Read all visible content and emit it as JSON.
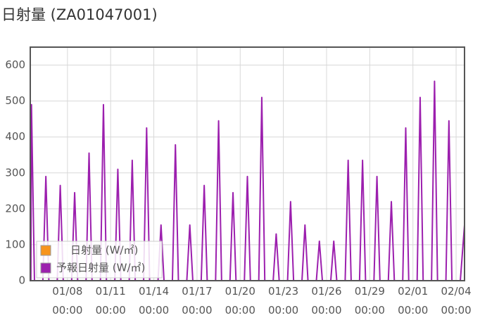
{
  "chart_data": {
    "type": "line",
    "title": "日射量 (ZA01047001)",
    "x": [
      "01/05 11:00",
      "01/05 12:00",
      "01/05 17:00",
      "01/06 07:00",
      "01/06 12:00",
      "01/06 17:00",
      "01/07 07:00",
      "01/07 12:00",
      "01/07 17:00",
      "01/08 07:00",
      "01/08 12:00",
      "01/08 17:00",
      "01/09 07:00",
      "01/09 12:00",
      "01/09 17:00",
      "01/10 07:00",
      "01/10 12:00",
      "01/10 17:00",
      "01/11 07:00",
      "01/11 12:00",
      "01/11 17:00",
      "01/12 07:00",
      "01/12 12:00",
      "01/12 17:00",
      "01/13 07:00",
      "01/13 12:00",
      "01/13 17:00",
      "01/14 07:00",
      "01/14 12:00",
      "01/14 17:00",
      "01/15 07:00",
      "01/15 12:00",
      "01/15 17:00",
      "01/16 07:00",
      "01/16 12:00",
      "01/16 17:00",
      "01/17 07:00",
      "01/17 12:00",
      "01/17 17:00",
      "01/18 07:00",
      "01/18 12:00",
      "01/18 17:00",
      "01/19 07:00",
      "01/19 12:00",
      "01/19 17:00",
      "01/20 07:00",
      "01/20 12:00",
      "01/20 17:00",
      "01/21 07:00",
      "01/21 12:00",
      "01/21 17:00",
      "01/22 07:00",
      "01/22 12:00",
      "01/22 17:00",
      "01/23 07:00",
      "01/23 12:00",
      "01/23 17:00",
      "01/24 07:00",
      "01/24 12:00",
      "01/24 17:00",
      "01/25 07:00",
      "01/25 12:00",
      "01/25 17:00",
      "01/26 07:00",
      "01/26 12:00",
      "01/26 17:00",
      "01/27 07:00",
      "01/27 12:00",
      "01/27 17:00",
      "01/28 07:00",
      "01/28 12:00",
      "01/28 17:00",
      "01/29 07:00",
      "01/29 12:00",
      "01/29 17:00",
      "01/30 07:00",
      "01/30 12:00",
      "01/30 17:00",
      "01/31 07:00",
      "01/31 12:00",
      "01/31 17:00",
      "02/01 07:00",
      "02/01 12:00",
      "02/01 17:00",
      "02/02 07:00",
      "02/02 12:00",
      "02/02 17:00",
      "02/03 07:00",
      "02/03 12:00",
      "02/03 17:00",
      "02/04 07:00",
      "02/04 14:00"
    ],
    "series": [
      {
        "name": "日射量 (W/㎡)",
        "color": "#f7941d",
        "values": [
          null,
          null,
          null,
          null,
          null,
          null,
          null,
          null,
          null,
          null,
          null,
          null,
          null,
          null,
          null,
          null,
          null,
          null,
          null,
          null,
          null,
          null,
          null,
          null,
          null,
          null,
          null,
          null,
          null,
          null,
          null,
          null,
          null,
          null,
          null,
          null,
          null,
          null,
          null,
          null,
          null,
          null,
          null,
          null,
          null,
          null,
          null,
          null,
          null,
          null,
          null,
          null,
          null,
          null,
          null,
          null,
          null,
          null,
          null,
          null,
          null,
          null,
          null,
          null,
          null,
          null,
          null,
          null,
          null,
          null,
          null,
          null,
          null,
          null,
          null,
          null,
          null,
          null,
          null,
          null,
          null,
          null,
          null,
          null,
          null,
          null,
          null,
          null,
          null,
          null,
          null,
          null
        ]
      },
      {
        "name": "予報日射量 (W/㎡)",
        "color": "#9c1fae",
        "values": [
          0,
          490,
          0,
          0,
          290,
          0,
          0,
          265,
          0,
          0,
          245,
          0,
          0,
          355,
          0,
          0,
          490,
          0,
          0,
          310,
          0,
          0,
          335,
          0,
          0,
          425,
          0,
          0,
          155,
          0,
          0,
          378,
          0,
          0,
          155,
          0,
          0,
          265,
          0,
          0,
          445,
          0,
          0,
          245,
          0,
          0,
          290,
          0,
          0,
          510,
          0,
          0,
          130,
          0,
          0,
          220,
          0,
          0,
          155,
          0,
          0,
          110,
          0,
          0,
          110,
          0,
          0,
          335,
          0,
          0,
          335,
          0,
          0,
          290,
          0,
          0,
          220,
          0,
          0,
          425,
          0,
          0,
          510,
          0,
          0,
          555,
          0,
          0,
          445,
          0,
          0,
          155
        ]
      }
    ],
    "xlim": [
      "01/05 10:00",
      "02/04 14:00"
    ],
    "xticks": [
      "01/08 00:00",
      "01/11 00:00",
      "01/14 00:00",
      "01/17 00:00",
      "01/20 00:00",
      "01/23 00:00",
      "01/26 00:00",
      "01/29 00:00",
      "02/01 00:00",
      "02/04 00:00"
    ],
    "ylim": [
      0,
      650
    ],
    "yticks": [
      0,
      100,
      200,
      300,
      400,
      500,
      600
    ],
    "grid": true,
    "legend": "lower left"
  }
}
